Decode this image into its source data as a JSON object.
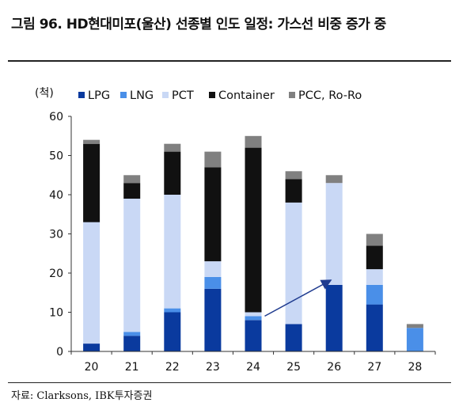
{
  "header": {
    "title": "그림 96. HD현대미포(울산) 선종별 인도 일정: 가스선 비중 증가 중",
    "unit": "(척)"
  },
  "footer": {
    "source": "자료: Clarksons, IBK투자증권"
  },
  "chart_data": {
    "type": "bar",
    "stacked": true,
    "title": "그림 96. HD현대미포(울산) 선종별 인도 일정: 가스선 비중 증가 중",
    "xlabel": "",
    "ylabel": "(척)",
    "categories": [
      "20",
      "21",
      "22",
      "23",
      "24",
      "25",
      "26",
      "27",
      "28"
    ],
    "ylim": [
      0,
      60
    ],
    "yticks": [
      0,
      10,
      20,
      30,
      40,
      50,
      60
    ],
    "grid": false,
    "legend_position": "top",
    "series": [
      {
        "name": "LPG",
        "color": "#0a3a9e",
        "values": [
          2,
          4,
          10,
          16,
          8,
          7,
          17,
          12,
          0
        ]
      },
      {
        "name": "LNG",
        "color": "#4a8fe8",
        "values": [
          0,
          1,
          1,
          3,
          1,
          0,
          0,
          5,
          6
        ]
      },
      {
        "name": "PCT",
        "color": "#c9d8f5",
        "values": [
          31,
          34,
          29,
          4,
          1,
          31,
          26,
          4,
          0
        ]
      },
      {
        "name": "Container",
        "color": "#111111",
        "values": [
          20,
          4,
          11,
          24,
          42,
          6,
          0,
          6,
          0
        ]
      },
      {
        "name": "PCC, Ro-Ro",
        "color": "#808080",
        "values": [
          1,
          2,
          2,
          4,
          3,
          2,
          2,
          3,
          1
        ]
      }
    ],
    "annotations": [
      {
        "type": "arrow",
        "from": {
          "x": "24",
          "y": 9
        },
        "to": {
          "x": "26",
          "y": 19
        },
        "color": "#1f3b8f"
      }
    ]
  }
}
